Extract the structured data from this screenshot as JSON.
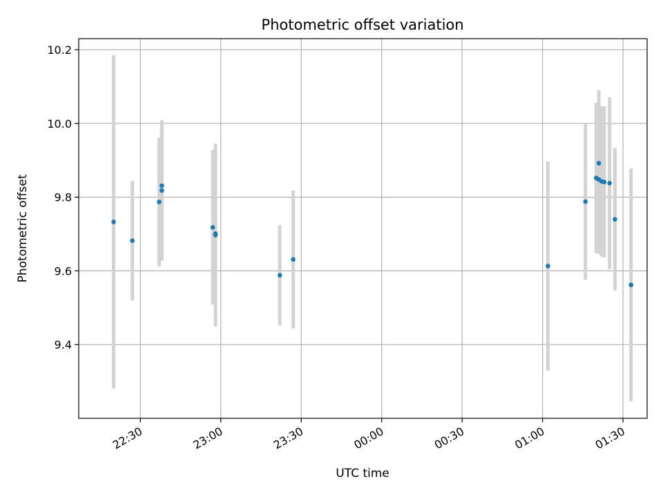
{
  "chart_data": {
    "type": "scatter",
    "title": "Photometric offset variation",
    "xlabel": "UTC time",
    "ylabel": "Photometric offset",
    "x_axis": "time",
    "xlim": [
      "22:07",
      "01:39"
    ],
    "ylim": [
      9.2,
      10.23
    ],
    "grid": true,
    "point_color": "#1f77b4",
    "errorbar_color": "#d3d3d3",
    "x_ticks": [
      "22:30",
      "23:00",
      "23:30",
      "00:00",
      "00:30",
      "01:00",
      "01:30"
    ],
    "y_ticks": [
      "9.4",
      "9.6",
      "9.8",
      "10.0",
      "10.2"
    ],
    "points": [
      {
        "t": "22:20",
        "y": 9.733,
        "err": 0.452
      },
      {
        "t": "22:27",
        "y": 9.682,
        "err": 0.162
      },
      {
        "t": "22:37",
        "y": 9.787,
        "err": 0.175
      },
      {
        "t": "22:38",
        "y": 9.818,
        "err": 0.19
      },
      {
        "t": "22:38",
        "y": 9.831,
        "err": 0.178
      },
      {
        "t": "22:57",
        "y": 9.718,
        "err": 0.209
      },
      {
        "t": "22:58",
        "y": 9.697,
        "err": 0.248
      },
      {
        "t": "22:58",
        "y": 9.701,
        "err": 0.199
      },
      {
        "t": "23:22",
        "y": 9.588,
        "err": 0.136
      },
      {
        "t": "23:27",
        "y": 9.631,
        "err": 0.187
      },
      {
        "t": "01:02",
        "y": 9.613,
        "err": 0.284
      },
      {
        "t": "01:16",
        "y": 9.788,
        "err": 0.212
      },
      {
        "t": "01:20",
        "y": 9.852,
        "err": 0.204
      },
      {
        "t": "01:21",
        "y": 9.848,
        "err": 0.202
      },
      {
        "t": "01:21",
        "y": 9.892,
        "err": 0.198
      },
      {
        "t": "01:22",
        "y": 9.843,
        "err": 0.204
      },
      {
        "t": "01:23",
        "y": 9.841,
        "err": 0.205
      },
      {
        "t": "01:25",
        "y": 9.838,
        "err": 0.233
      },
      {
        "t": "01:27",
        "y": 9.74,
        "err": 0.193
      },
      {
        "t": "01:33",
        "y": 9.562,
        "err": 0.316
      }
    ]
  }
}
